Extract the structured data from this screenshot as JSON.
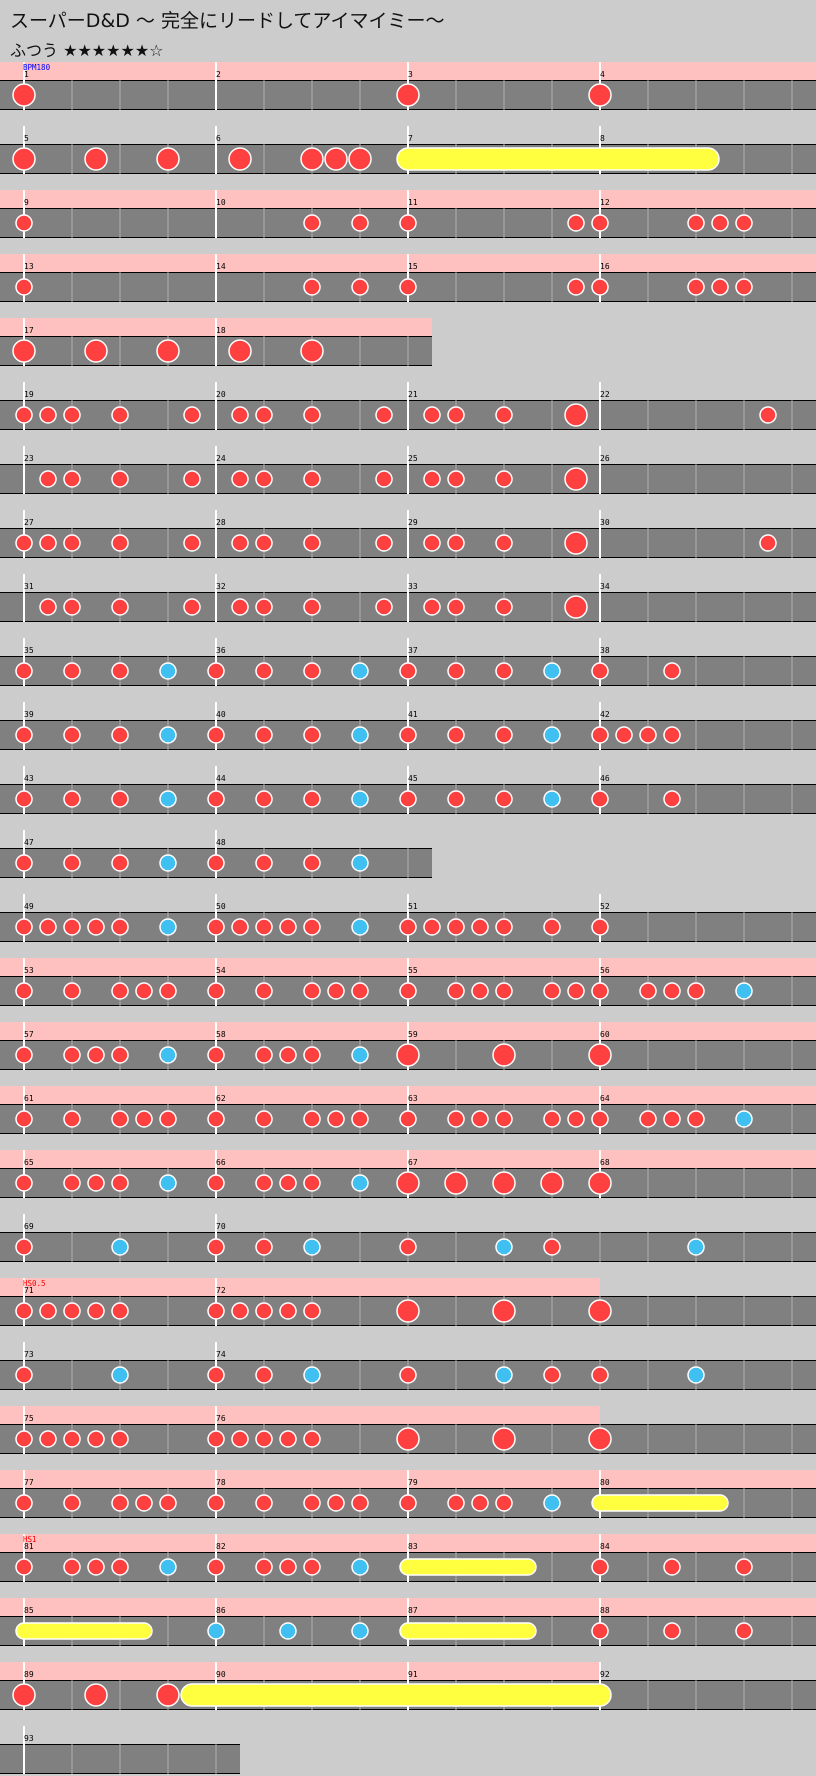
{
  "song_title": "スーパーD&D 〜 完全にリードしてアイマイミー〜",
  "difficulty_label": "ふつう",
  "difficulty_stars": "★★★★★★☆",
  "colors": {
    "background": "#cccccc",
    "lane": "#808080",
    "gogo_band": "#ffc0c0",
    "don": "#ff4040",
    "ka": "#40c0f0",
    "roll": "#ffff40",
    "bpm_label": "#0000ff",
    "hs_label": "#ff0000"
  },
  "events": [
    {
      "row": 0,
      "text": "BPM180",
      "kind": "bpm"
    },
    {
      "row": 19,
      "text": "HS0.5",
      "kind": "hs"
    },
    {
      "row": 23,
      "text": "HS1",
      "kind": "hs"
    }
  ],
  "rows": [
    {
      "measures": [
        1,
        2,
        3,
        4
      ],
      "len": 16,
      "gogo": 16,
      "notes": [
        [
          "D",
          0
        ],
        [
          "D",
          8
        ],
        [
          "D",
          12
        ]
      ]
    },
    {
      "measures": [
        5,
        6,
        7,
        8
      ],
      "len": 16,
      "gogo": 0,
      "notes": [
        [
          "D",
          0
        ],
        [
          "D",
          1.5
        ],
        [
          "D",
          3
        ],
        [
          "D",
          4.5
        ],
        [
          "D",
          6
        ],
        [
          "D",
          6.5
        ],
        [
          "D",
          7
        ],
        [
          "R",
          8,
          14.25
        ]
      ]
    },
    {
      "measures": [
        9,
        10,
        11,
        12
      ],
      "len": 16,
      "gogo": 16,
      "notes": [
        [
          "d",
          0
        ],
        [
          "d",
          6
        ],
        [
          "d",
          7
        ],
        [
          "d",
          8
        ],
        [
          "d",
          11.5
        ],
        [
          "d",
          12
        ],
        [
          "d",
          14
        ],
        [
          "d",
          14.5
        ],
        [
          "d",
          15
        ]
      ]
    },
    {
      "measures": [
        13,
        14,
        15,
        16
      ],
      "len": 16,
      "gogo": 16,
      "notes": [
        [
          "d",
          0
        ],
        [
          "d",
          6
        ],
        [
          "d",
          7
        ],
        [
          "d",
          8
        ],
        [
          "d",
          11.5
        ],
        [
          "d",
          12
        ],
        [
          "d",
          14
        ],
        [
          "d",
          14.5
        ],
        [
          "d",
          15
        ]
      ]
    },
    {
      "measures": [
        17,
        18
      ],
      "len": 8.5,
      "gogo": 8.5,
      "notes": [
        [
          "D",
          0
        ],
        [
          "D",
          1.5
        ],
        [
          "D",
          3
        ],
        [
          "D",
          4.5
        ],
        [
          "D",
          6
        ]
      ]
    },
    {
      "measures": [
        19,
        20,
        21,
        22
      ],
      "len": 16,
      "gogo": 0,
      "notes": [
        [
          "d",
          0
        ],
        [
          "d",
          0.5
        ],
        [
          "d",
          1
        ],
        [
          "d",
          2
        ],
        [
          "d",
          3.5
        ],
        [
          "d",
          4.5
        ],
        [
          "d",
          5
        ],
        [
          "d",
          6
        ],
        [
          "d",
          7.5
        ],
        [
          "d",
          8.5
        ],
        [
          "d",
          9
        ],
        [
          "d",
          10
        ],
        [
          "D",
          11.5
        ],
        [
          "d",
          15.5
        ]
      ]
    },
    {
      "measures": [
        23,
        24,
        25,
        26
      ],
      "len": 16,
      "gogo": 0,
      "notes": [
        [
          "d",
          0.5
        ],
        [
          "d",
          1
        ],
        [
          "d",
          2
        ],
        [
          "d",
          3.5
        ],
        [
          "d",
          4.5
        ],
        [
          "d",
          5
        ],
        [
          "d",
          6
        ],
        [
          "d",
          7.5
        ],
        [
          "d",
          8.5
        ],
        [
          "d",
          9
        ],
        [
          "d",
          10
        ],
        [
          "D",
          11.5
        ]
      ]
    },
    {
      "measures": [
        27,
        28,
        29,
        30
      ],
      "len": 16,
      "gogo": 0,
      "notes": [
        [
          "d",
          0
        ],
        [
          "d",
          0.5
        ],
        [
          "d",
          1
        ],
        [
          "d",
          2
        ],
        [
          "d",
          3.5
        ],
        [
          "d",
          4.5
        ],
        [
          "d",
          5
        ],
        [
          "d",
          6
        ],
        [
          "d",
          7.5
        ],
        [
          "d",
          8.5
        ],
        [
          "d",
          9
        ],
        [
          "d",
          10
        ],
        [
          "D",
          11.5
        ],
        [
          "d",
          15.5
        ]
      ]
    },
    {
      "measures": [
        31,
        32,
        33,
        34
      ],
      "len": 16,
      "gogo": 0,
      "notes": [
        [
          "d",
          0.5
        ],
        [
          "d",
          1
        ],
        [
          "d",
          2
        ],
        [
          "d",
          3.5
        ],
        [
          "d",
          4.5
        ],
        [
          "d",
          5
        ],
        [
          "d",
          6
        ],
        [
          "d",
          7.5
        ],
        [
          "d",
          8.5
        ],
        [
          "d",
          9
        ],
        [
          "d",
          10
        ],
        [
          "D",
          11.5
        ]
      ]
    },
    {
      "measures": [
        35,
        36,
        37,
        38
      ],
      "len": 16,
      "gogo": 0,
      "notes": [
        [
          "d",
          0
        ],
        [
          "d",
          1
        ],
        [
          "d",
          2
        ],
        [
          "k",
          3
        ],
        [
          "d",
          4
        ],
        [
          "d",
          5
        ],
        [
          "d",
          6
        ],
        [
          "k",
          7
        ],
        [
          "d",
          8
        ],
        [
          "d",
          9
        ],
        [
          "d",
          10
        ],
        [
          "k",
          11
        ],
        [
          "d",
          12
        ],
        [
          "d",
          13.5
        ]
      ]
    },
    {
      "measures": [
        39,
        40,
        41,
        42
      ],
      "len": 16,
      "gogo": 0,
      "notes": [
        [
          "d",
          0
        ],
        [
          "d",
          1
        ],
        [
          "d",
          2
        ],
        [
          "k",
          3
        ],
        [
          "d",
          4
        ],
        [
          "d",
          5
        ],
        [
          "d",
          6
        ],
        [
          "k",
          7
        ],
        [
          "d",
          8
        ],
        [
          "d",
          9
        ],
        [
          "d",
          10
        ],
        [
          "k",
          11
        ],
        [
          "d",
          12
        ],
        [
          "d",
          12.5
        ],
        [
          "d",
          13
        ],
        [
          "d",
          13.5
        ]
      ]
    },
    {
      "measures": [
        43,
        44,
        45,
        46
      ],
      "len": 16,
      "gogo": 0,
      "notes": [
        [
          "d",
          0
        ],
        [
          "d",
          1
        ],
        [
          "d",
          2
        ],
        [
          "k",
          3
        ],
        [
          "d",
          4
        ],
        [
          "d",
          5
        ],
        [
          "d",
          6
        ],
        [
          "k",
          7
        ],
        [
          "d",
          8
        ],
        [
          "d",
          9
        ],
        [
          "d",
          10
        ],
        [
          "k",
          11
        ],
        [
          "d",
          12
        ],
        [
          "d",
          13.5
        ]
      ]
    },
    {
      "measures": [
        47,
        48
      ],
      "len": 8.5,
      "gogo": 0,
      "notes": [
        [
          "d",
          0
        ],
        [
          "d",
          1
        ],
        [
          "d",
          2
        ],
        [
          "k",
          3
        ],
        [
          "d",
          4
        ],
        [
          "d",
          5
        ],
        [
          "d",
          6
        ],
        [
          "k",
          7
        ]
      ]
    },
    {
      "measures": [
        49,
        50,
        51,
        52
      ],
      "len": 16,
      "gogo": 0,
      "notes": [
        [
          "d",
          0
        ],
        [
          "d",
          0.5
        ],
        [
          "d",
          1
        ],
        [
          "d",
          1.5
        ],
        [
          "d",
          2
        ],
        [
          "k",
          3
        ],
        [
          "d",
          4
        ],
        [
          "d",
          4.5
        ],
        [
          "d",
          5
        ],
        [
          "d",
          5.5
        ],
        [
          "d",
          6
        ],
        [
          "k",
          7
        ],
        [
          "d",
          8
        ],
        [
          "d",
          8.5
        ],
        [
          "d",
          9
        ],
        [
          "d",
          9.5
        ],
        [
          "d",
          10
        ],
        [
          "d",
          11
        ],
        [
          "d",
          12
        ]
      ]
    },
    {
      "measures": [
        53,
        54,
        55,
        56
      ],
      "len": 16,
      "gogo": 16,
      "notes": [
        [
          "d",
          0
        ],
        [
          "d",
          1
        ],
        [
          "d",
          2
        ],
        [
          "d",
          2.5
        ],
        [
          "d",
          3
        ],
        [
          "d",
          4
        ],
        [
          "d",
          5
        ],
        [
          "d",
          6
        ],
        [
          "d",
          6.5
        ],
        [
          "d",
          7
        ],
        [
          "d",
          8
        ],
        [
          "d",
          9
        ],
        [
          "d",
          9.5
        ],
        [
          "d",
          10
        ],
        [
          "d",
          11
        ],
        [
          "d",
          11.5
        ],
        [
          "d",
          12
        ],
        [
          "d",
          13
        ],
        [
          "d",
          13.5
        ],
        [
          "d",
          14
        ],
        [
          "k",
          15
        ]
      ]
    },
    {
      "measures": [
        57,
        58,
        59,
        60
      ],
      "len": 16,
      "gogo": 16,
      "notes": [
        [
          "d",
          0
        ],
        [
          "d",
          1
        ],
        [
          "d",
          1.5
        ],
        [
          "d",
          2
        ],
        [
          "k",
          3
        ],
        [
          "d",
          4
        ],
        [
          "d",
          5
        ],
        [
          "d",
          5.5
        ],
        [
          "d",
          6
        ],
        [
          "k",
          7
        ],
        [
          "D",
          8
        ],
        [
          "D",
          10
        ],
        [
          "D",
          12
        ]
      ]
    },
    {
      "measures": [
        61,
        62,
        63,
        64
      ],
      "len": 16,
      "gogo": 16,
      "notes": [
        [
          "d",
          0
        ],
        [
          "d",
          1
        ],
        [
          "d",
          2
        ],
        [
          "d",
          2.5
        ],
        [
          "d",
          3
        ],
        [
          "d",
          4
        ],
        [
          "d",
          5
        ],
        [
          "d",
          6
        ],
        [
          "d",
          6.5
        ],
        [
          "d",
          7
        ],
        [
          "d",
          8
        ],
        [
          "d",
          9
        ],
        [
          "d",
          9.5
        ],
        [
          "d",
          10
        ],
        [
          "d",
          11
        ],
        [
          "d",
          11.5
        ],
        [
          "d",
          12
        ],
        [
          "d",
          13
        ],
        [
          "d",
          13.5
        ],
        [
          "d",
          14
        ],
        [
          "k",
          15
        ]
      ]
    },
    {
      "measures": [
        65,
        66,
        67,
        68
      ],
      "len": 16,
      "gogo": 16,
      "notes": [
        [
          "d",
          0
        ],
        [
          "d",
          1
        ],
        [
          "d",
          1.5
        ],
        [
          "d",
          2
        ],
        [
          "k",
          3
        ],
        [
          "d",
          4
        ],
        [
          "d",
          5
        ],
        [
          "d",
          5.5
        ],
        [
          "d",
          6
        ],
        [
          "k",
          7
        ],
        [
          "D",
          8
        ],
        [
          "D",
          9
        ],
        [
          "D",
          10
        ],
        [
          "D",
          11
        ],
        [
          "D",
          12
        ]
      ]
    },
    {
      "measures": [
        69,
        70
      ],
      "len": 16,
      "gogo": 0,
      "notes": [
        [
          "d",
          0
        ],
        [
          "k",
          2
        ],
        [
          "d",
          4
        ],
        [
          "d",
          5
        ],
        [
          "k",
          6
        ],
        [
          "d",
          8
        ],
        [
          "k",
          10
        ],
        [
          "d",
          11
        ],
        [
          "k",
          14
        ]
      ]
    },
    {
      "measures": [
        71,
        72
      ],
      "len": 16,
      "gogo": 12,
      "notes": [
        [
          "d",
          0
        ],
        [
          "d",
          0.5
        ],
        [
          "d",
          1
        ],
        [
          "d",
          1.5
        ],
        [
          "d",
          2
        ],
        [
          "d",
          4
        ],
        [
          "d",
          4.5
        ],
        [
          "d",
          5
        ],
        [
          "d",
          5.5
        ],
        [
          "d",
          6
        ],
        [
          "D",
          8
        ],
        [
          "D",
          10
        ],
        [
          "D",
          12
        ]
      ]
    },
    {
      "measures": [
        73,
        74
      ],
      "len": 16,
      "gogo": 0,
      "notes": [
        [
          "d",
          0
        ],
        [
          "k",
          2
        ],
        [
          "d",
          4
        ],
        [
          "d",
          5
        ],
        [
          "k",
          6
        ],
        [
          "d",
          8
        ],
        [
          "k",
          10
        ],
        [
          "d",
          11
        ],
        [
          "d",
          12
        ],
        [
          "k",
          14
        ]
      ]
    },
    {
      "measures": [
        75,
        76
      ],
      "len": 16,
      "gogo": 12,
      "notes": [
        [
          "d",
          0
        ],
        [
          "d",
          0.5
        ],
        [
          "d",
          1
        ],
        [
          "d",
          1.5
        ],
        [
          "d",
          2
        ],
        [
          "d",
          4
        ],
        [
          "d",
          4.5
        ],
        [
          "d",
          5
        ],
        [
          "d",
          5.5
        ],
        [
          "d",
          6
        ],
        [
          "D",
          8
        ],
        [
          "D",
          10
        ],
        [
          "D",
          12
        ]
      ]
    },
    {
      "measures": [
        77,
        78,
        79,
        80
      ],
      "len": 16,
      "gogo": 16,
      "notes": [
        [
          "d",
          0
        ],
        [
          "d",
          1
        ],
        [
          "d",
          2
        ],
        [
          "d",
          2.5
        ],
        [
          "d",
          3
        ],
        [
          "d",
          4
        ],
        [
          "d",
          5
        ],
        [
          "d",
          6
        ],
        [
          "d",
          6.5
        ],
        [
          "d",
          7
        ],
        [
          "d",
          8
        ],
        [
          "d",
          9
        ],
        [
          "d",
          9.5
        ],
        [
          "d",
          10
        ],
        [
          "k",
          11
        ],
        [
          "r",
          12,
          14.5
        ]
      ]
    },
    {
      "measures": [
        81,
        82,
        83,
        84
      ],
      "len": 16,
      "gogo": 16,
      "notes": [
        [
          "d",
          0
        ],
        [
          "d",
          1
        ],
        [
          "d",
          1.5
        ],
        [
          "d",
          2
        ],
        [
          "k",
          3
        ],
        [
          "d",
          4
        ],
        [
          "d",
          5
        ],
        [
          "d",
          5.5
        ],
        [
          "d",
          6
        ],
        [
          "k",
          7
        ],
        [
          "r",
          8,
          10.5
        ],
        [
          "d",
          12
        ],
        [
          "d",
          13.5
        ],
        [
          "d",
          15
        ]
      ]
    },
    {
      "measures": [
        85,
        86,
        87,
        88
      ],
      "len": 16,
      "gogo": 16,
      "notes": [
        [
          "r",
          0,
          2.5
        ],
        [
          "k",
          4
        ],
        [
          "k",
          5.5
        ],
        [
          "k",
          7
        ],
        [
          "r",
          8,
          10.5
        ],
        [
          "d",
          12
        ],
        [
          "d",
          13.5
        ],
        [
          "d",
          15
        ]
      ]
    },
    {
      "measures": [
        89,
        90,
        91,
        92
      ],
      "len": 16,
      "gogo": 12,
      "notes": [
        [
          "D",
          0
        ],
        [
          "D",
          1.5
        ],
        [
          "D",
          3
        ],
        [
          "R",
          3.5,
          12
        ]
      ]
    },
    {
      "measures": [
        93
      ],
      "len": 4.5,
      "gogo": 0,
      "notes": []
    }
  ]
}
